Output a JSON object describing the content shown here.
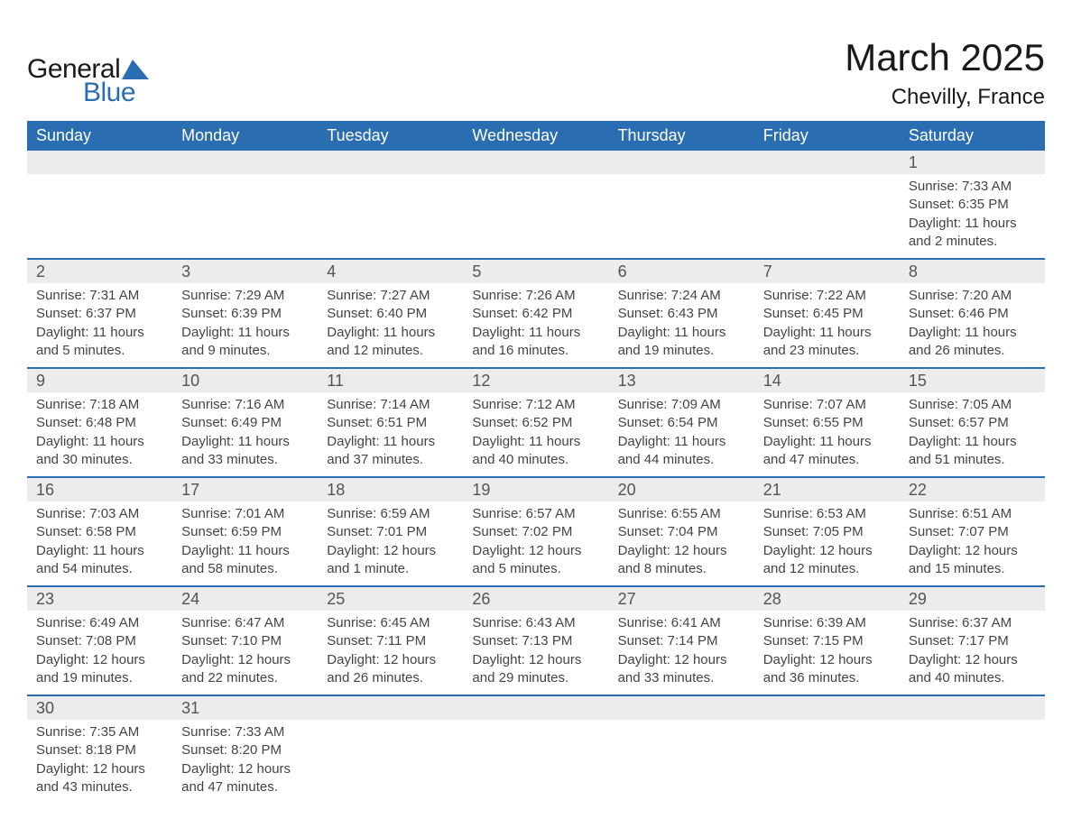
{
  "logo": {
    "text_general": "General",
    "text_blue": "Blue",
    "mark_color": "#2a6db0"
  },
  "title": "March 2025",
  "location": "Chevilly, France",
  "colors": {
    "header_bg": "#2a6db0",
    "header_text": "#ffffff",
    "daynum_bg": "#ececec",
    "row_divider": "#2a6db0",
    "body_text": "#444444",
    "title_text": "#1a1a1a"
  },
  "day_headers": [
    "Sunday",
    "Monday",
    "Tuesday",
    "Wednesday",
    "Thursday",
    "Friday",
    "Saturday"
  ],
  "weeks": [
    [
      null,
      null,
      null,
      null,
      null,
      null,
      {
        "n": "1",
        "sr": "Sunrise: 7:33 AM",
        "ss": "Sunset: 6:35 PM",
        "d1": "Daylight: 11 hours",
        "d2": "and 2 minutes."
      }
    ],
    [
      {
        "n": "2",
        "sr": "Sunrise: 7:31 AM",
        "ss": "Sunset: 6:37 PM",
        "d1": "Daylight: 11 hours",
        "d2": "and 5 minutes."
      },
      {
        "n": "3",
        "sr": "Sunrise: 7:29 AM",
        "ss": "Sunset: 6:39 PM",
        "d1": "Daylight: 11 hours",
        "d2": "and 9 minutes."
      },
      {
        "n": "4",
        "sr": "Sunrise: 7:27 AM",
        "ss": "Sunset: 6:40 PM",
        "d1": "Daylight: 11 hours",
        "d2": "and 12 minutes."
      },
      {
        "n": "5",
        "sr": "Sunrise: 7:26 AM",
        "ss": "Sunset: 6:42 PM",
        "d1": "Daylight: 11 hours",
        "d2": "and 16 minutes."
      },
      {
        "n": "6",
        "sr": "Sunrise: 7:24 AM",
        "ss": "Sunset: 6:43 PM",
        "d1": "Daylight: 11 hours",
        "d2": "and 19 minutes."
      },
      {
        "n": "7",
        "sr": "Sunrise: 7:22 AM",
        "ss": "Sunset: 6:45 PM",
        "d1": "Daylight: 11 hours",
        "d2": "and 23 minutes."
      },
      {
        "n": "8",
        "sr": "Sunrise: 7:20 AM",
        "ss": "Sunset: 6:46 PM",
        "d1": "Daylight: 11 hours",
        "d2": "and 26 minutes."
      }
    ],
    [
      {
        "n": "9",
        "sr": "Sunrise: 7:18 AM",
        "ss": "Sunset: 6:48 PM",
        "d1": "Daylight: 11 hours",
        "d2": "and 30 minutes."
      },
      {
        "n": "10",
        "sr": "Sunrise: 7:16 AM",
        "ss": "Sunset: 6:49 PM",
        "d1": "Daylight: 11 hours",
        "d2": "and 33 minutes."
      },
      {
        "n": "11",
        "sr": "Sunrise: 7:14 AM",
        "ss": "Sunset: 6:51 PM",
        "d1": "Daylight: 11 hours",
        "d2": "and 37 minutes."
      },
      {
        "n": "12",
        "sr": "Sunrise: 7:12 AM",
        "ss": "Sunset: 6:52 PM",
        "d1": "Daylight: 11 hours",
        "d2": "and 40 minutes."
      },
      {
        "n": "13",
        "sr": "Sunrise: 7:09 AM",
        "ss": "Sunset: 6:54 PM",
        "d1": "Daylight: 11 hours",
        "d2": "and 44 minutes."
      },
      {
        "n": "14",
        "sr": "Sunrise: 7:07 AM",
        "ss": "Sunset: 6:55 PM",
        "d1": "Daylight: 11 hours",
        "d2": "and 47 minutes."
      },
      {
        "n": "15",
        "sr": "Sunrise: 7:05 AM",
        "ss": "Sunset: 6:57 PM",
        "d1": "Daylight: 11 hours",
        "d2": "and 51 minutes."
      }
    ],
    [
      {
        "n": "16",
        "sr": "Sunrise: 7:03 AM",
        "ss": "Sunset: 6:58 PM",
        "d1": "Daylight: 11 hours",
        "d2": "and 54 minutes."
      },
      {
        "n": "17",
        "sr": "Sunrise: 7:01 AM",
        "ss": "Sunset: 6:59 PM",
        "d1": "Daylight: 11 hours",
        "d2": "and 58 minutes."
      },
      {
        "n": "18",
        "sr": "Sunrise: 6:59 AM",
        "ss": "Sunset: 7:01 PM",
        "d1": "Daylight: 12 hours",
        "d2": "and 1 minute."
      },
      {
        "n": "19",
        "sr": "Sunrise: 6:57 AM",
        "ss": "Sunset: 7:02 PM",
        "d1": "Daylight: 12 hours",
        "d2": "and 5 minutes."
      },
      {
        "n": "20",
        "sr": "Sunrise: 6:55 AM",
        "ss": "Sunset: 7:04 PM",
        "d1": "Daylight: 12 hours",
        "d2": "and 8 minutes."
      },
      {
        "n": "21",
        "sr": "Sunrise: 6:53 AM",
        "ss": "Sunset: 7:05 PM",
        "d1": "Daylight: 12 hours",
        "d2": "and 12 minutes."
      },
      {
        "n": "22",
        "sr": "Sunrise: 6:51 AM",
        "ss": "Sunset: 7:07 PM",
        "d1": "Daylight: 12 hours",
        "d2": "and 15 minutes."
      }
    ],
    [
      {
        "n": "23",
        "sr": "Sunrise: 6:49 AM",
        "ss": "Sunset: 7:08 PM",
        "d1": "Daylight: 12 hours",
        "d2": "and 19 minutes."
      },
      {
        "n": "24",
        "sr": "Sunrise: 6:47 AM",
        "ss": "Sunset: 7:10 PM",
        "d1": "Daylight: 12 hours",
        "d2": "and 22 minutes."
      },
      {
        "n": "25",
        "sr": "Sunrise: 6:45 AM",
        "ss": "Sunset: 7:11 PM",
        "d1": "Daylight: 12 hours",
        "d2": "and 26 minutes."
      },
      {
        "n": "26",
        "sr": "Sunrise: 6:43 AM",
        "ss": "Sunset: 7:13 PM",
        "d1": "Daylight: 12 hours",
        "d2": "and 29 minutes."
      },
      {
        "n": "27",
        "sr": "Sunrise: 6:41 AM",
        "ss": "Sunset: 7:14 PM",
        "d1": "Daylight: 12 hours",
        "d2": "and 33 minutes."
      },
      {
        "n": "28",
        "sr": "Sunrise: 6:39 AM",
        "ss": "Sunset: 7:15 PM",
        "d1": "Daylight: 12 hours",
        "d2": "and 36 minutes."
      },
      {
        "n": "29",
        "sr": "Sunrise: 6:37 AM",
        "ss": "Sunset: 7:17 PM",
        "d1": "Daylight: 12 hours",
        "d2": "and 40 minutes."
      }
    ],
    [
      {
        "n": "30",
        "sr": "Sunrise: 7:35 AM",
        "ss": "Sunset: 8:18 PM",
        "d1": "Daylight: 12 hours",
        "d2": "and 43 minutes."
      },
      {
        "n": "31",
        "sr": "Sunrise: 7:33 AM",
        "ss": "Sunset: 8:20 PM",
        "d1": "Daylight: 12 hours",
        "d2": "and 47 minutes."
      },
      null,
      null,
      null,
      null,
      null
    ]
  ]
}
